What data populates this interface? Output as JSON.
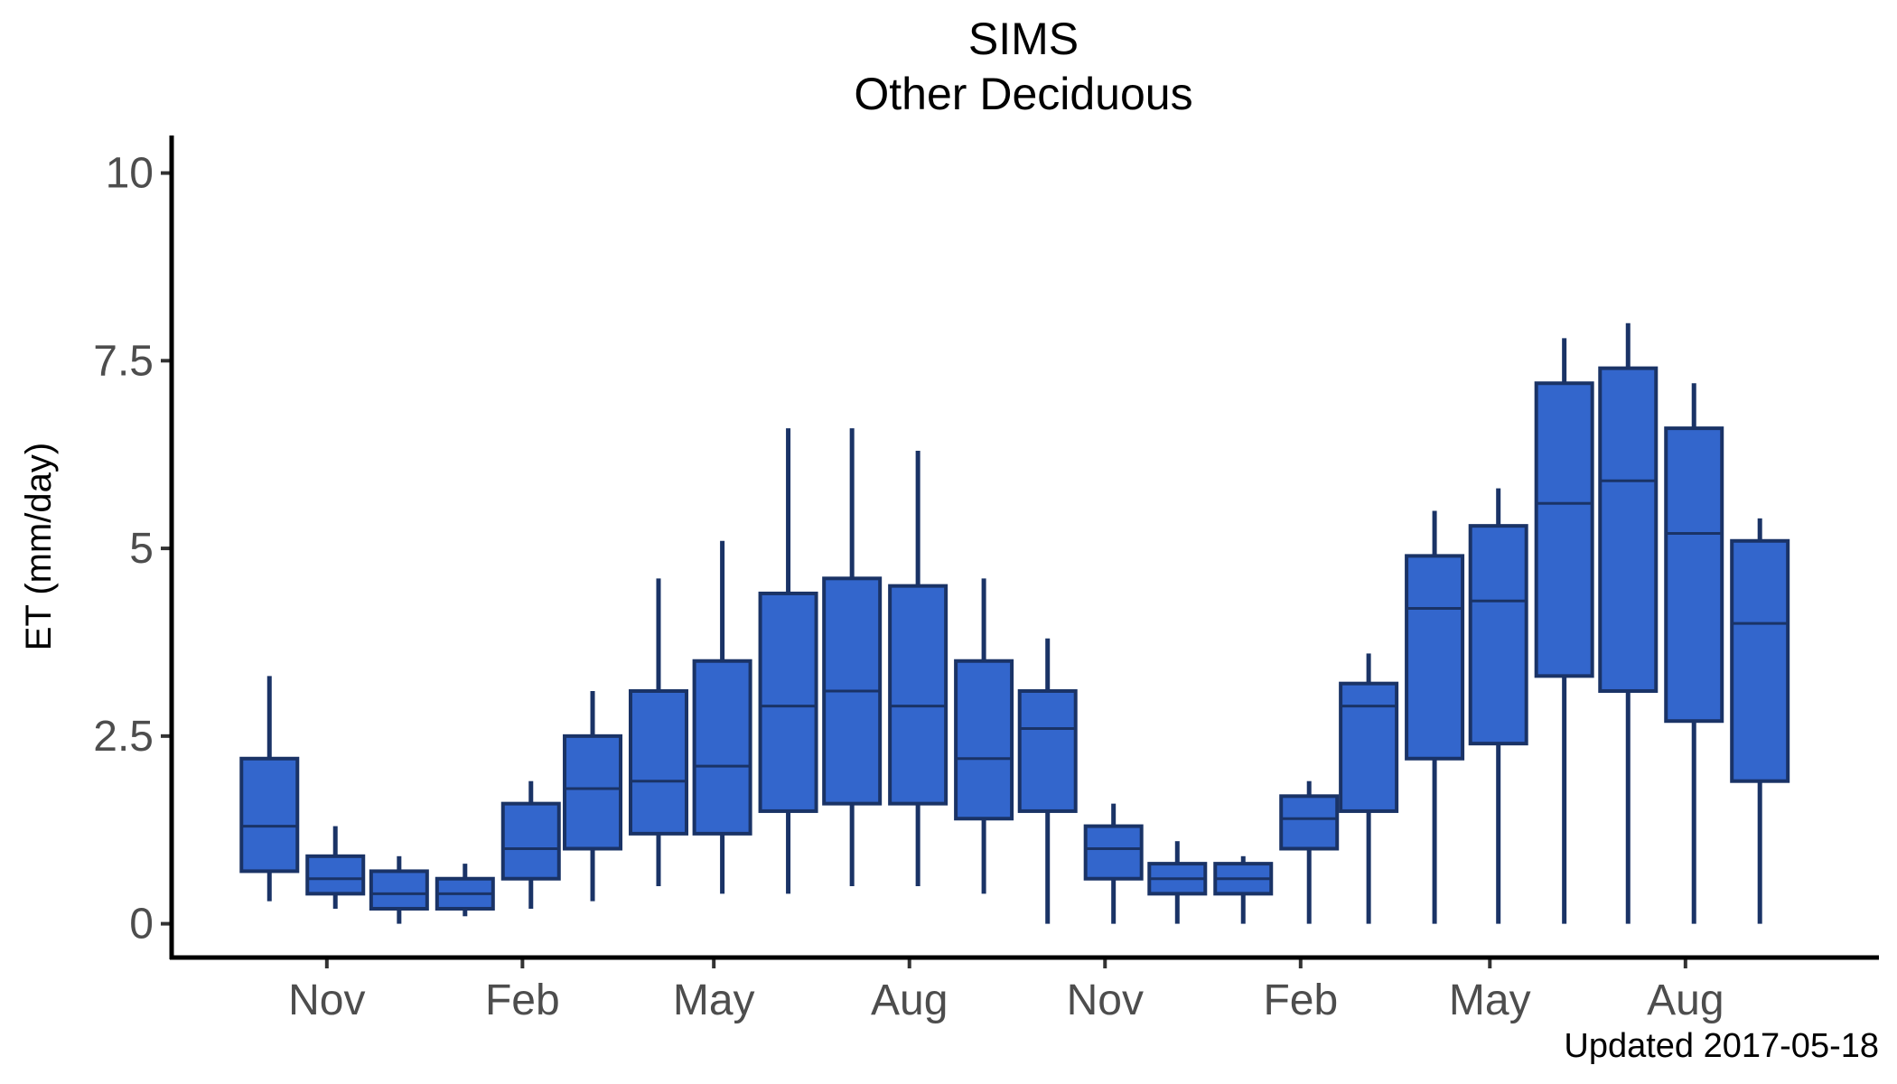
{
  "chart_data": {
    "type": "boxplot",
    "title": "SIMS",
    "subtitle": "Other Deciduous",
    "ylabel": "ET (mm/day)",
    "xlabel": "",
    "caption": "Updated  2017-05-18",
    "ylim": [
      -0.45,
      10.5
    ],
    "yticks": [
      {
        "value": 0,
        "label": "0"
      },
      {
        "value": 2.5,
        "label": "2.5"
      },
      {
        "value": 5,
        "label": "5"
      },
      {
        "value": 7.5,
        "label": "7.5"
      },
      {
        "value": 10,
        "label": "10"
      }
    ],
    "xticks": [
      {
        "date": "2015-11-01",
        "label": "Nov"
      },
      {
        "date": "2016-02-01",
        "label": "Feb"
      },
      {
        "date": "2016-05-01",
        "label": "May"
      },
      {
        "date": "2016-08-01",
        "label": "Aug"
      },
      {
        "date": "2016-11-01",
        "label": "Nov"
      },
      {
        "date": "2017-02-01",
        "label": "Feb"
      },
      {
        "date": "2017-05-01",
        "label": "May"
      },
      {
        "date": "2017-08-01",
        "label": "Aug"
      }
    ],
    "xlim": [
      "2015-08-20",
      "2017-10-31"
    ],
    "grid": false,
    "legend": "none",
    "colors": {
      "box_fill": "#3366cc",
      "box_outline": "#1a3366",
      "axis": "#000000"
    },
    "boxes": [
      {
        "date": "2015-10-05",
        "min": 0.3,
        "q1": 0.7,
        "median": 1.3,
        "q3": 2.2,
        "max": 3.3
      },
      {
        "date": "2015-11-05",
        "min": 0.2,
        "q1": 0.4,
        "median": 0.6,
        "q3": 0.9,
        "max": 1.3
      },
      {
        "date": "2015-12-05",
        "min": 0.0,
        "q1": 0.2,
        "median": 0.4,
        "q3": 0.7,
        "max": 0.9
      },
      {
        "date": "2016-01-05",
        "min": 0.1,
        "q1": 0.2,
        "median": 0.4,
        "q3": 0.6,
        "max": 0.8
      },
      {
        "date": "2016-02-05",
        "min": 0.2,
        "q1": 0.6,
        "median": 1.0,
        "q3": 1.6,
        "max": 1.9
      },
      {
        "date": "2016-03-05",
        "min": 0.3,
        "q1": 1.0,
        "median": 1.8,
        "q3": 2.5,
        "max": 3.1
      },
      {
        "date": "2016-04-05",
        "min": 0.5,
        "q1": 1.2,
        "median": 1.9,
        "q3": 3.1,
        "max": 4.6
      },
      {
        "date": "2016-05-05",
        "min": 0.4,
        "q1": 1.2,
        "median": 2.1,
        "q3": 3.5,
        "max": 5.1
      },
      {
        "date": "2016-06-05",
        "min": 0.4,
        "q1": 1.5,
        "median": 2.9,
        "q3": 4.4,
        "max": 6.6
      },
      {
        "date": "2016-07-05",
        "min": 0.5,
        "q1": 1.6,
        "median": 3.1,
        "q3": 4.6,
        "max": 6.6
      },
      {
        "date": "2016-08-05",
        "min": 0.5,
        "q1": 1.6,
        "median": 2.9,
        "q3": 4.5,
        "max": 6.3
      },
      {
        "date": "2016-09-05",
        "min": 0.4,
        "q1": 1.4,
        "median": 2.2,
        "q3": 3.5,
        "max": 4.6
      },
      {
        "date": "2016-10-05",
        "min": 0.0,
        "q1": 1.5,
        "median": 2.6,
        "q3": 3.1,
        "max": 3.8
      },
      {
        "date": "2016-11-05",
        "min": 0.0,
        "q1": 0.6,
        "median": 1.0,
        "q3": 1.3,
        "max": 1.6
      },
      {
        "date": "2016-12-05",
        "min": 0.0,
        "q1": 0.4,
        "median": 0.6,
        "q3": 0.8,
        "max": 1.1
      },
      {
        "date": "2017-01-05",
        "min": 0.0,
        "q1": 0.4,
        "median": 0.6,
        "q3": 0.8,
        "max": 0.9
      },
      {
        "date": "2017-02-05",
        "min": 0.0,
        "q1": 1.0,
        "median": 1.4,
        "q3": 1.7,
        "max": 1.9
      },
      {
        "date": "2017-03-05",
        "min": 0.0,
        "q1": 1.5,
        "median": 2.9,
        "q3": 3.2,
        "max": 3.6
      },
      {
        "date": "2017-04-05",
        "min": 0.0,
        "q1": 2.2,
        "median": 4.2,
        "q3": 4.9,
        "max": 5.5
      },
      {
        "date": "2017-05-05",
        "min": 0.0,
        "q1": 2.4,
        "median": 4.3,
        "q3": 5.3,
        "max": 5.8
      },
      {
        "date": "2017-06-05",
        "min": 0.0,
        "q1": 3.3,
        "median": 5.6,
        "q3": 7.2,
        "max": 7.8
      },
      {
        "date": "2017-07-05",
        "min": 0.0,
        "q1": 3.1,
        "median": 5.9,
        "q3": 7.4,
        "max": 8.0
      },
      {
        "date": "2017-08-05",
        "min": 0.0,
        "q1": 2.7,
        "median": 5.2,
        "q3": 6.6,
        "max": 7.2
      },
      {
        "date": "2017-09-05",
        "min": 0.0,
        "q1": 1.9,
        "median": 4.0,
        "q3": 5.1,
        "max": 5.4
      }
    ]
  }
}
